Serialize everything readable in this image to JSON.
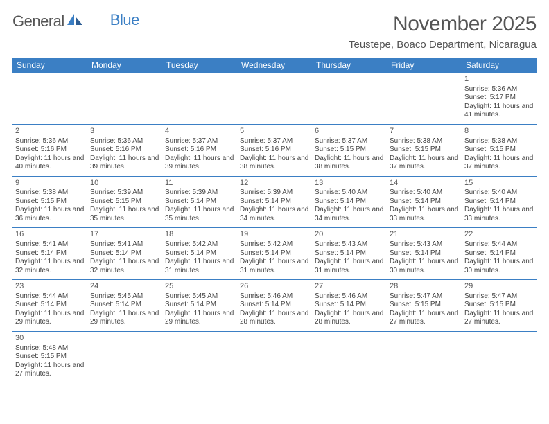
{
  "logo": {
    "part1": "General",
    "part2": "Blue"
  },
  "title": "November 2025",
  "location": "Teustepe, Boaco Department, Nicaragua",
  "colors": {
    "header_bg": "#3b7fc4",
    "header_text": "#ffffff",
    "border": "#3b7fc4",
    "body_text": "#444444",
    "title_text": "#555555"
  },
  "dayNames": [
    "Sunday",
    "Monday",
    "Tuesday",
    "Wednesday",
    "Thursday",
    "Friday",
    "Saturday"
  ],
  "weeks": [
    [
      null,
      null,
      null,
      null,
      null,
      null,
      {
        "n": "1",
        "sr": "5:36 AM",
        "ss": "5:17 PM",
        "dl": "11 hours and 41 minutes."
      }
    ],
    [
      {
        "n": "2",
        "sr": "5:36 AM",
        "ss": "5:16 PM",
        "dl": "11 hours and 40 minutes."
      },
      {
        "n": "3",
        "sr": "5:36 AM",
        "ss": "5:16 PM",
        "dl": "11 hours and 39 minutes."
      },
      {
        "n": "4",
        "sr": "5:37 AM",
        "ss": "5:16 PM",
        "dl": "11 hours and 39 minutes."
      },
      {
        "n": "5",
        "sr": "5:37 AM",
        "ss": "5:16 PM",
        "dl": "11 hours and 38 minutes."
      },
      {
        "n": "6",
        "sr": "5:37 AM",
        "ss": "5:15 PM",
        "dl": "11 hours and 38 minutes."
      },
      {
        "n": "7",
        "sr": "5:38 AM",
        "ss": "5:15 PM",
        "dl": "11 hours and 37 minutes."
      },
      {
        "n": "8",
        "sr": "5:38 AM",
        "ss": "5:15 PM",
        "dl": "11 hours and 37 minutes."
      }
    ],
    [
      {
        "n": "9",
        "sr": "5:38 AM",
        "ss": "5:15 PM",
        "dl": "11 hours and 36 minutes."
      },
      {
        "n": "10",
        "sr": "5:39 AM",
        "ss": "5:15 PM",
        "dl": "11 hours and 35 minutes."
      },
      {
        "n": "11",
        "sr": "5:39 AM",
        "ss": "5:14 PM",
        "dl": "11 hours and 35 minutes."
      },
      {
        "n": "12",
        "sr": "5:39 AM",
        "ss": "5:14 PM",
        "dl": "11 hours and 34 minutes."
      },
      {
        "n": "13",
        "sr": "5:40 AM",
        "ss": "5:14 PM",
        "dl": "11 hours and 34 minutes."
      },
      {
        "n": "14",
        "sr": "5:40 AM",
        "ss": "5:14 PM",
        "dl": "11 hours and 33 minutes."
      },
      {
        "n": "15",
        "sr": "5:40 AM",
        "ss": "5:14 PM",
        "dl": "11 hours and 33 minutes."
      }
    ],
    [
      {
        "n": "16",
        "sr": "5:41 AM",
        "ss": "5:14 PM",
        "dl": "11 hours and 32 minutes."
      },
      {
        "n": "17",
        "sr": "5:41 AM",
        "ss": "5:14 PM",
        "dl": "11 hours and 32 minutes."
      },
      {
        "n": "18",
        "sr": "5:42 AM",
        "ss": "5:14 PM",
        "dl": "11 hours and 31 minutes."
      },
      {
        "n": "19",
        "sr": "5:42 AM",
        "ss": "5:14 PM",
        "dl": "11 hours and 31 minutes."
      },
      {
        "n": "20",
        "sr": "5:43 AM",
        "ss": "5:14 PM",
        "dl": "11 hours and 31 minutes."
      },
      {
        "n": "21",
        "sr": "5:43 AM",
        "ss": "5:14 PM",
        "dl": "11 hours and 30 minutes."
      },
      {
        "n": "22",
        "sr": "5:44 AM",
        "ss": "5:14 PM",
        "dl": "11 hours and 30 minutes."
      }
    ],
    [
      {
        "n": "23",
        "sr": "5:44 AM",
        "ss": "5:14 PM",
        "dl": "11 hours and 29 minutes."
      },
      {
        "n": "24",
        "sr": "5:45 AM",
        "ss": "5:14 PM",
        "dl": "11 hours and 29 minutes."
      },
      {
        "n": "25",
        "sr": "5:45 AM",
        "ss": "5:14 PM",
        "dl": "11 hours and 29 minutes."
      },
      {
        "n": "26",
        "sr": "5:46 AM",
        "ss": "5:14 PM",
        "dl": "11 hours and 28 minutes."
      },
      {
        "n": "27",
        "sr": "5:46 AM",
        "ss": "5:14 PM",
        "dl": "11 hours and 28 minutes."
      },
      {
        "n": "28",
        "sr": "5:47 AM",
        "ss": "5:15 PM",
        "dl": "11 hours and 27 minutes."
      },
      {
        "n": "29",
        "sr": "5:47 AM",
        "ss": "5:15 PM",
        "dl": "11 hours and 27 minutes."
      }
    ],
    [
      {
        "n": "30",
        "sr": "5:48 AM",
        "ss": "5:15 PM",
        "dl": "11 hours and 27 minutes."
      },
      null,
      null,
      null,
      null,
      null,
      null
    ]
  ],
  "labels": {
    "sunrise": "Sunrise:",
    "sunset": "Sunset:",
    "daylight": "Daylight:"
  }
}
